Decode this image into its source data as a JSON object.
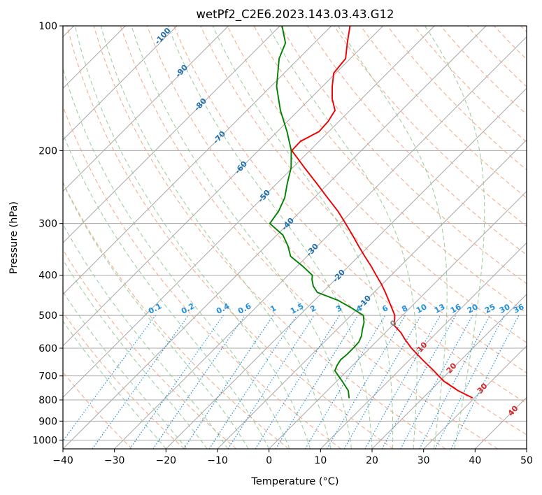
{
  "chart_data": {
    "type": "line",
    "subtype": "skew-t log-p",
    "title": "wetPf2_C2E6.2023.143.03.43.G12",
    "xlabel": "Temperature (°C)",
    "ylabel": "Pressure (hPa)",
    "xlim": [
      -40,
      50
    ],
    "ylim": [
      1050,
      100
    ],
    "x_ticks": [
      -40,
      -30,
      -20,
      -10,
      0,
      10,
      20,
      30,
      40,
      50
    ],
    "x_tick_labels": [
      "−40",
      "−30",
      "−20",
      "−10",
      "0",
      "10",
      "20",
      "30",
      "40",
      "50"
    ],
    "y_ticks": [
      1000,
      900,
      800,
      700,
      600,
      500,
      400,
      300,
      200,
      100
    ],
    "y_tick_labels": [
      "1000",
      "900",
      "800",
      "700",
      "600",
      "500",
      "400",
      "300",
      "200",
      "100"
    ],
    "grid": true,
    "series": [
      {
        "name": "Temperature",
        "color": "#ee0000",
        "pressure": [
          790,
          760,
          720,
          680,
          640,
          600,
          570,
          550,
          530,
          520,
          500,
          480,
          460,
          440,
          420,
          400,
          380,
          360,
          340,
          320,
          300,
          280,
          260,
          240,
          220,
          200,
          190,
          180,
          170,
          160,
          150,
          140,
          130,
          120,
          110,
          100
        ],
        "temperature": [
          29.5,
          25.4,
          20.7,
          16.8,
          12.5,
          8.1,
          5.0,
          3.0,
          0.5,
          -0.2,
          -1.5,
          -3.5,
          -5.6,
          -7.8,
          -10.2,
          -12.9,
          -15.7,
          -18.8,
          -22.0,
          -25.3,
          -28.9,
          -32.8,
          -37.4,
          -42.3,
          -47.7,
          -53.5,
          -53.6,
          -51.9,
          -52.1,
          -52.9,
          -55.7,
          -58.1,
          -60.4,
          -60.9,
          -63.6,
          -66.4
        ]
      },
      {
        "name": "Dewpoint",
        "color": "#008000",
        "pressure": [
          790,
          760,
          720,
          680,
          660,
          640,
          620,
          600,
          580,
          560,
          540,
          520,
          500,
          480,
          460,
          440,
          425,
          410,
          400,
          380,
          360,
          340,
          320,
          300,
          280,
          260,
          240,
          220,
          200,
          180,
          160,
          140,
          120,
          110,
          100
        ],
        "temperature": [
          5.6,
          4.1,
          1.0,
          -2.4,
          -3.0,
          -3.4,
          -3.2,
          -3.2,
          -3.3,
          -4.0,
          -5.1,
          -6.1,
          -7.6,
          -11.3,
          -15.4,
          -21.0,
          -23.0,
          -24.5,
          -25.3,
          -29.0,
          -33.2,
          -35.7,
          -38.8,
          -43.6,
          -44.3,
          -45.7,
          -48.0,
          -50.3,
          -53.6,
          -58.1,
          -63.5,
          -68.9,
          -73.8,
          -75.6,
          -79.6
        ]
      }
    ],
    "dry_adiabat_labels": [
      "-100",
      "-90",
      "-80",
      "-70",
      "-60",
      "-50",
      "-40",
      "-30",
      "-20",
      "-10",
      "0",
      "10",
      "20",
      "30",
      "40"
    ],
    "mixing_ratio_labels": [
      "0.1",
      "0.2",
      "0.4",
      "0.6",
      "1",
      "1.5",
      "2",
      "3",
      "4",
      "6",
      "8",
      "10",
      "13",
      "16",
      "20",
      "25",
      "30",
      "36"
    ],
    "mixing_ratio_values": [
      0.1,
      0.2,
      0.4,
      0.6,
      1,
      1.5,
      2,
      3,
      4,
      6,
      8,
      10,
      13,
      16,
      20,
      25,
      30,
      36
    ]
  },
  "colors": {
    "temperature_line": "#ee0000",
    "dewpoint_line": "#008000",
    "isotherm": "#a8a8a8",
    "dry_adiabat": "#f4a582",
    "moist_adiabat": "#92c592",
    "mixing_ratio": "#1f8fe0",
    "label_cold": "#1f6fb0",
    "label_warm": "#d62728",
    "label_zero": "#808080"
  }
}
